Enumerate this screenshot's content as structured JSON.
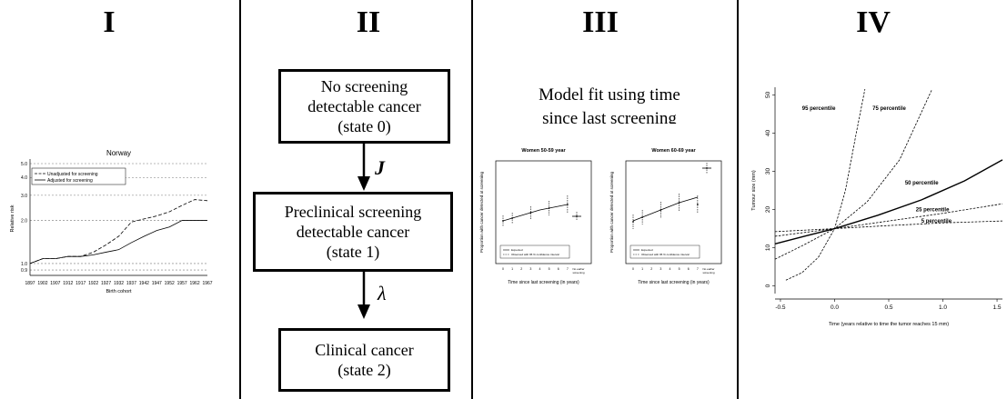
{
  "panels": [
    "I",
    "II",
    "III",
    "IV"
  ],
  "panel1": {
    "title": "Norway",
    "ylabel": "Relative risk",
    "xlabel": "Birth cohort",
    "yticks": [
      "5.0",
      "4.0",
      "3.0",
      "2.0",
      "1.0",
      "0.9"
    ],
    "xticks": [
      "1897",
      "1902",
      "1907",
      "1912",
      "1917",
      "1922",
      "1927",
      "1932",
      "1937",
      "1942",
      "1947",
      "1952",
      "1957",
      "1962",
      "1967"
    ],
    "legend": [
      "Unadjusted for screening",
      "Adjusted for screening"
    ]
  },
  "panel2": {
    "state0": [
      "No screening",
      "detectable cancer",
      "(state 0)"
    ],
    "state1": [
      "Preclinical screening",
      "detectable cancer",
      "(state 1)"
    ],
    "state2": [
      "Clinical cancer",
      "(state 2)"
    ],
    "rate1": "J",
    "rate2": "λ"
  },
  "panel3": {
    "heading": [
      "Model fit using time",
      "since last screening"
    ],
    "left": {
      "title": "Women 50-59 year",
      "ylabel": "Proportion with cancer detected at screening",
      "xlabel": "Time since last screening (in years)",
      "xticks": [
        "0",
        "1",
        "2",
        "3",
        "4",
        "5",
        "6",
        "7"
      ],
      "extra_tick": [
        "No earlier",
        "screening"
      ],
      "legend": [
        "Expected",
        "Observed with 95 % confidence interval"
      ]
    },
    "right": {
      "title": "Women 60-69 year",
      "ylabel": "Proportion with cancer detected at screening",
      "xlabel": "Time since last screening (in years)",
      "xticks": [
        "0",
        "1",
        "2",
        "3",
        "4",
        "5",
        "6",
        "7"
      ],
      "extra_tick": [
        "No earlier",
        "screening"
      ],
      "legend": [
        "Expected",
        "Observed with 95 % confidence interval"
      ]
    }
  },
  "panel4": {
    "ylabel": "Tumour size (mm)",
    "xlabel": "Time (years relative to time the tumor reaches 15 mm)",
    "yticks": [
      "0",
      "10",
      "20",
      "30",
      "40",
      "50"
    ],
    "xticks": [
      "-0.5",
      "0.0",
      "0.5",
      "1.0",
      "1.5"
    ],
    "curve_labels": [
      "95 percentile",
      "75 percentile",
      "50 percentile",
      "25 percentile",
      "5 percentile"
    ]
  },
  "chart_data": [
    {
      "type": "line",
      "title": "Norway",
      "xlabel": "Birth cohort",
      "ylabel": "Relative risk",
      "log_y": true,
      "ylim": [
        0.85,
        5.0
      ],
      "categories": [
        "1897",
        "1902",
        "1907",
        "1912",
        "1917",
        "1922",
        "1927",
        "1932",
        "1937",
        "1942",
        "1947",
        "1952",
        "1957",
        "1962",
        "1967"
      ],
      "series": [
        {
          "name": "Unadjusted for screening",
          "values": [
            1.0,
            1.08,
            1.08,
            1.12,
            1.12,
            1.2,
            1.35,
            1.55,
            1.95,
            2.05,
            2.15,
            2.3,
            2.55,
            2.8,
            2.75
          ]
        },
        {
          "name": "Adjusted for screening",
          "values": [
            1.0,
            1.08,
            1.08,
            1.12,
            1.12,
            1.15,
            1.2,
            1.25,
            1.4,
            1.55,
            1.7,
            1.8,
            2.0,
            2.0,
            2.0
          ]
        }
      ]
    },
    {
      "type": "line",
      "title": "",
      "xlabel": "Time (years relative to time the tumor reaches 15 mm)",
      "ylabel": "Tumour size (mm)",
      "xlim": [
        -0.55,
        1.55
      ],
      "ylim": [
        -2,
        52
      ],
      "series": [
        {
          "name": "95 percentile",
          "x": [
            -0.45,
            -0.3,
            -0.15,
            0.0,
            0.1,
            0.2,
            0.28
          ],
          "y": [
            1.5,
            3.5,
            7.5,
            15,
            25,
            40,
            52
          ]
        },
        {
          "name": "75 percentile",
          "x": [
            -0.55,
            -0.3,
            0.0,
            0.3,
            0.6,
            0.9
          ],
          "y": [
            7,
            10.5,
            15,
            22,
            33,
            52
          ]
        },
        {
          "name": "50 percentile",
          "x": [
            -0.55,
            -0.25,
            0.0,
            0.4,
            0.8,
            1.2,
            1.55
          ],
          "y": [
            11,
            13.2,
            15,
            18.5,
            22.5,
            27.5,
            33
          ]
        },
        {
          "name": "25 percentile",
          "x": [
            -0.55,
            0.0,
            0.5,
            1.0,
            1.55
          ],
          "y": [
            13,
            15,
            17,
            19,
            21.5
          ]
        },
        {
          "name": "5 percentile",
          "x": [
            -0.55,
            0.0,
            0.5,
            1.0,
            1.55
          ],
          "y": [
            14.2,
            15,
            15.8,
            16.5,
            17
          ]
        }
      ]
    }
  ]
}
